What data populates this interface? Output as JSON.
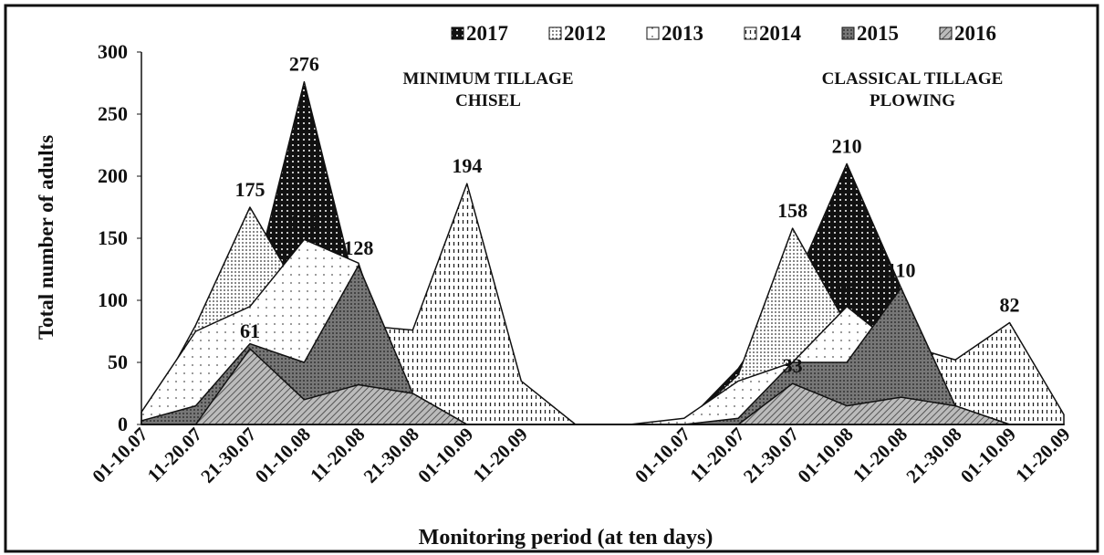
{
  "chart_data": {
    "type": "area",
    "x_label": "Monitoring period (at ten days)",
    "y_label": "Total number of adults",
    "annotations": [
      {
        "lines": [
          "MINIMUM TILLAGE",
          "CHISEL"
        ]
      },
      {
        "lines": [
          "CLASSICAL TILLAGE",
          "PLOWING"
        ]
      }
    ],
    "categories": [
      "01-10.07",
      "11-20.07",
      "21-30.07",
      "01-10.08",
      "11-20.08",
      "21-30.08",
      "01-10.09",
      "11-20.09",
      null,
      null,
      "01-10.07",
      "11-20.07",
      "21-30.07",
      "01-10.08",
      "11-20.08",
      "21-30.08",
      "01-10.09",
      "11-20.09"
    ],
    "ylim": [
      0,
      300
    ],
    "yticks": [
      0,
      50,
      100,
      150,
      200,
      250,
      300
    ],
    "series": [
      {
        "name": "2017",
        "color": "#111111",
        "pattern": "dark-dots",
        "values": [
          0,
          0,
          100,
          276,
          100,
          0,
          0,
          0,
          0,
          0,
          0,
          45,
          110,
          210,
          110,
          0,
          0,
          0
        ],
        "value_labels": [
          null,
          null,
          null,
          "276",
          null,
          null,
          null,
          null,
          null,
          null,
          null,
          null,
          null,
          "210",
          null,
          null,
          null,
          null
        ]
      },
      {
        "name": "2012",
        "color": "#333333",
        "pattern": "dots",
        "values": [
          0,
          80,
          175,
          100,
          0,
          0,
          0,
          0,
          0,
          0,
          0,
          40,
          158,
          80,
          0,
          0,
          0,
          0
        ],
        "value_labels": [
          null,
          null,
          "175",
          null,
          null,
          null,
          null,
          null,
          null,
          null,
          null,
          null,
          "158",
          null,
          null,
          null,
          null,
          null
        ]
      },
      {
        "name": "2013",
        "color": "#555555",
        "pattern": "sparse-dots",
        "values": [
          10,
          75,
          95,
          149,
          130,
          0,
          0,
          0,
          0,
          0,
          5,
          35,
          50,
          95,
          60,
          0,
          0,
          0
        ],
        "value_labels": [
          null,
          null,
          null,
          "149",
          null,
          null,
          null,
          null,
          null,
          null,
          null,
          null,
          null,
          "95",
          null,
          null,
          null,
          null
        ]
      },
      {
        "name": "2014",
        "color": "#222222",
        "pattern": "vdash",
        "values": [
          0,
          10,
          70,
          75,
          80,
          76,
          194,
          35,
          0,
          0,
          0,
          20,
          50,
          50,
          65,
          52,
          82,
          8
        ],
        "value_labels": [
          null,
          null,
          null,
          null,
          null,
          null,
          "194",
          null,
          null,
          null,
          null,
          null,
          null,
          null,
          null,
          null,
          "82",
          null
        ]
      },
      {
        "name": "2015",
        "color": "#555555",
        "pattern": "grid",
        "values": [
          3,
          15,
          65,
          50,
          128,
          25,
          0,
          0,
          0,
          0,
          0,
          5,
          50,
          50,
          110,
          15,
          0,
          0
        ],
        "value_labels": [
          null,
          null,
          null,
          null,
          "128",
          null,
          null,
          null,
          null,
          null,
          null,
          null,
          null,
          null,
          "110",
          null,
          null,
          null
        ]
      },
      {
        "name": "2016",
        "color": "#444444",
        "pattern": "hatch",
        "values": [
          0,
          0,
          61,
          20,
          32,
          25,
          0,
          0,
          0,
          0,
          0,
          0,
          33,
          15,
          22,
          15,
          0,
          0
        ],
        "value_labels": [
          null,
          null,
          "61",
          null,
          null,
          null,
          null,
          null,
          null,
          null,
          null,
          null,
          "33",
          null,
          null,
          null,
          null,
          null
        ]
      }
    ]
  }
}
